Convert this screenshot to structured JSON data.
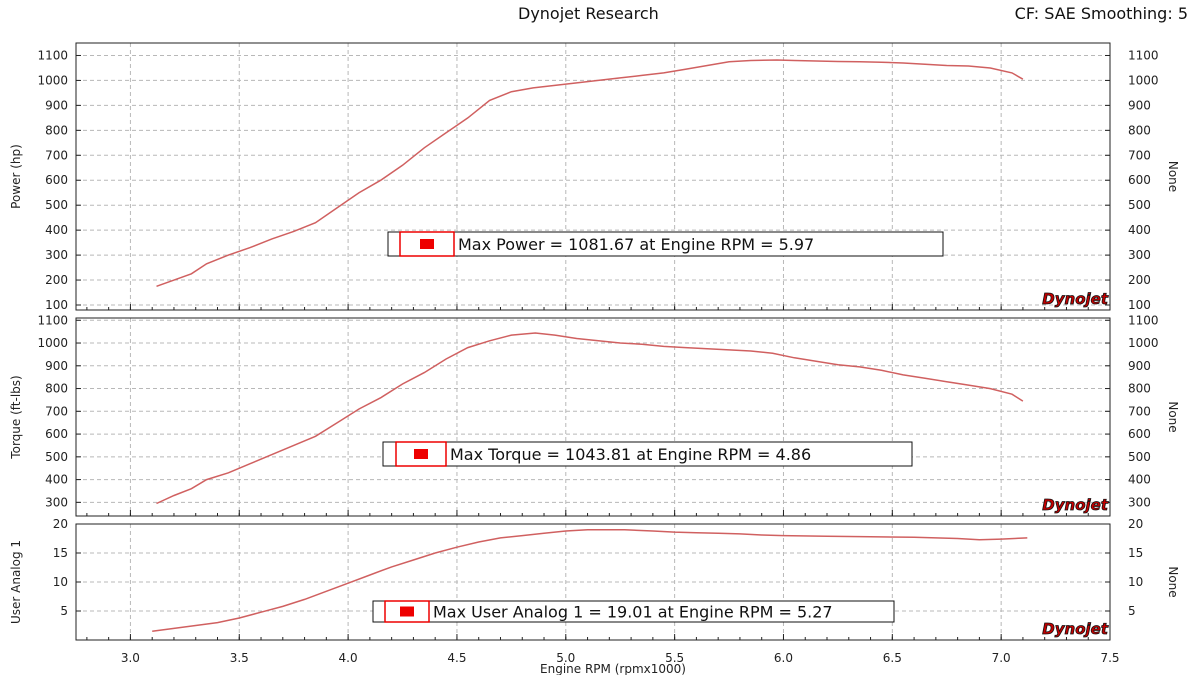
{
  "header": {
    "title": "Dynojet Research",
    "cf": "CF: SAE Smoothing: 5"
  },
  "colors": {
    "curve": "#d06060",
    "marker": "#ee0000",
    "grid": "#b8b8b8"
  },
  "x_axis": {
    "label": "Engine RPM (rpmx1000)",
    "range": [
      2.75,
      7.5
    ],
    "ticks": [
      "3.0",
      "3.5",
      "4.0",
      "4.5",
      "5.0",
      "5.5",
      "6.0",
      "6.5",
      "7.0",
      "7.5"
    ]
  },
  "logo_text": "Dynojet",
  "chart_data": [
    {
      "type": "line",
      "ylabel": "Power (hp)",
      "right_label": "None",
      "ylim": [
        80,
        1150
      ],
      "yticks": [
        100,
        200,
        300,
        400,
        500,
        600,
        700,
        800,
        900,
        1000,
        1100
      ],
      "annotation": "Max Power = 1081.67 at Engine RPM = 5.97",
      "series": [
        {
          "x": [
            3.12,
            3.2,
            3.28,
            3.35,
            3.45,
            3.55,
            3.65,
            3.75,
            3.85,
            3.95,
            4.05,
            4.15,
            4.25,
            4.35,
            4.45,
            4.55,
            4.65,
            4.75,
            4.85,
            4.95,
            5.05,
            5.15,
            5.25,
            5.35,
            5.45,
            5.55,
            5.65,
            5.75,
            5.85,
            5.97,
            6.05,
            6.15,
            6.25,
            6.35,
            6.45,
            6.55,
            6.65,
            6.75,
            6.85,
            6.95,
            7.05,
            7.1
          ],
          "y": [
            175,
            200,
            225,
            265,
            300,
            330,
            365,
            395,
            430,
            490,
            550,
            600,
            660,
            730,
            790,
            850,
            920,
            955,
            970,
            980,
            990,
            1000,
            1010,
            1020,
            1030,
            1045,
            1060,
            1075,
            1080,
            1082,
            1080,
            1078,
            1076,
            1075,
            1073,
            1070,
            1065,
            1060,
            1058,
            1050,
            1030,
            1005
          ]
        }
      ]
    },
    {
      "type": "line",
      "ylabel": "Torque (ft-lbs)",
      "right_label": "None",
      "ylim": [
        240,
        1110
      ],
      "yticks": [
        300,
        400,
        500,
        600,
        700,
        800,
        900,
        1000,
        1100
      ],
      "annotation": "Max Torque = 1043.81 at Engine RPM = 4.86",
      "series": [
        {
          "x": [
            3.12,
            3.2,
            3.28,
            3.35,
            3.45,
            3.55,
            3.65,
            3.75,
            3.85,
            3.95,
            4.05,
            4.15,
            4.25,
            4.35,
            4.45,
            4.55,
            4.65,
            4.75,
            4.86,
            4.95,
            5.05,
            5.15,
            5.25,
            5.35,
            5.45,
            5.55,
            5.65,
            5.75,
            5.85,
            5.95,
            6.05,
            6.15,
            6.25,
            6.35,
            6.45,
            6.55,
            6.65,
            6.75,
            6.85,
            6.95,
            7.05,
            7.1
          ],
          "y": [
            295,
            330,
            360,
            400,
            430,
            470,
            510,
            550,
            590,
            650,
            710,
            760,
            820,
            870,
            930,
            980,
            1010,
            1035,
            1044,
            1035,
            1020,
            1010,
            1000,
            995,
            985,
            980,
            975,
            970,
            965,
            955,
            935,
            920,
            905,
            895,
            880,
            860,
            845,
            830,
            815,
            800,
            775,
            745
          ]
        }
      ]
    },
    {
      "type": "line",
      "ylabel": "User Analog 1",
      "right_label": "None",
      "ylim": [
        0,
        20
      ],
      "yticks": [
        5,
        10,
        15,
        20
      ],
      "annotation": "Max User Analog 1 = 19.01 at Engine RPM = 5.27",
      "series": [
        {
          "x": [
            3.1,
            3.2,
            3.3,
            3.4,
            3.5,
            3.6,
            3.7,
            3.8,
            3.9,
            4.0,
            4.1,
            4.2,
            4.3,
            4.4,
            4.5,
            4.6,
            4.7,
            4.8,
            4.9,
            5.0,
            5.1,
            5.2,
            5.27,
            5.4,
            5.5,
            5.6,
            5.7,
            5.8,
            5.9,
            6.0,
            6.2,
            6.4,
            6.6,
            6.8,
            6.9,
            7.0,
            7.12
          ],
          "y": [
            1.5,
            2.0,
            2.5,
            3.0,
            3.8,
            4.8,
            5.8,
            7.0,
            8.4,
            9.8,
            11.2,
            12.6,
            13.8,
            15.0,
            16.0,
            16.9,
            17.6,
            18.0,
            18.4,
            18.8,
            19.0,
            19.0,
            19.0,
            18.8,
            18.6,
            18.5,
            18.4,
            18.3,
            18.1,
            18.0,
            17.9,
            17.8,
            17.7,
            17.5,
            17.3,
            17.4,
            17.6
          ]
        }
      ]
    }
  ]
}
